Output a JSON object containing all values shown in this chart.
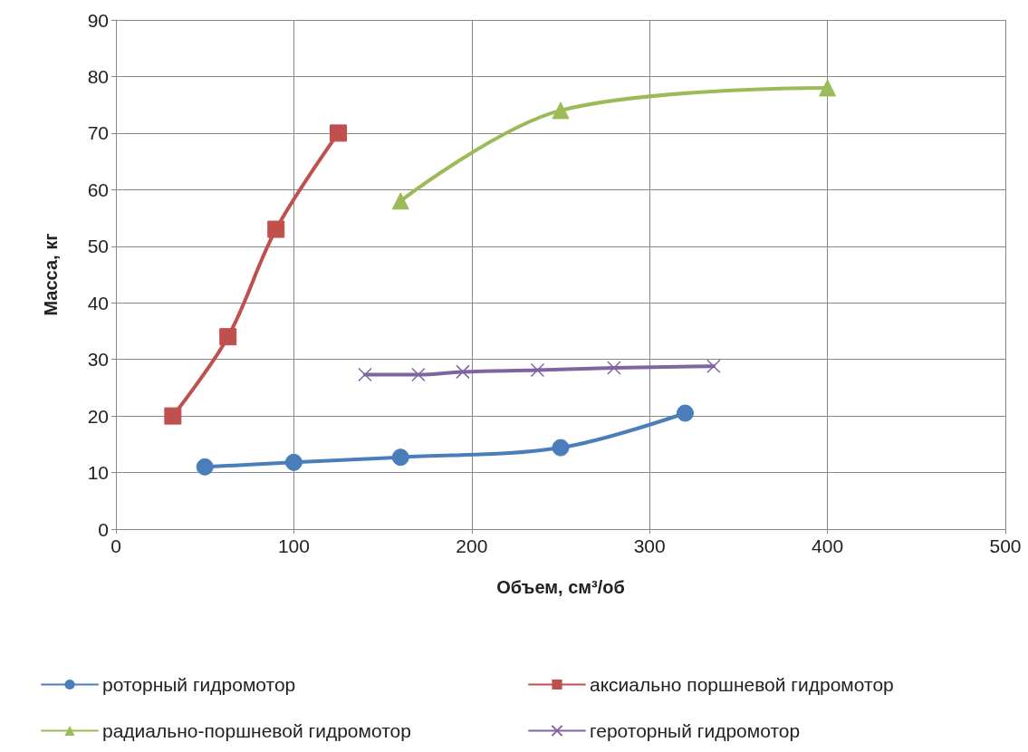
{
  "chart_data": {
    "type": "line",
    "xlabel": "Объем, см³/об",
    "ylabel": "Масса, кг",
    "xlim": [
      0,
      500
    ],
    "xticks": [
      0,
      100,
      200,
      300,
      400,
      500
    ],
    "ylim": [
      0,
      90
    ],
    "yticks": [
      0,
      10,
      20,
      30,
      40,
      50,
      60,
      70,
      80,
      90
    ],
    "grid": true,
    "legend": "bottom",
    "series": [
      {
        "name": "роторный гидромотор",
        "color": "#4a7ebb",
        "marker": "circle",
        "x": [
          50,
          100,
          160,
          250,
          320
        ],
        "values": [
          11,
          11.8,
          12.7,
          14.4,
          20.5
        ]
      },
      {
        "name": "аксиально поршневой гидромотор",
        "color": "#c0504d",
        "marker": "square",
        "x": [
          32,
          63,
          90,
          125
        ],
        "values": [
          20,
          34,
          53,
          70
        ]
      },
      {
        "name": "радиально-поршневой гидромотор",
        "color": "#9bbb59",
        "marker": "triangle",
        "x": [
          160,
          250,
          400
        ],
        "values": [
          58,
          74,
          78
        ]
      },
      {
        "name": "героторный гидромотор",
        "color": "#8064a2",
        "marker": "cross",
        "x": [
          140,
          170,
          195,
          237,
          280,
          336
        ],
        "values": [
          27.3,
          27.3,
          27.8,
          28.1,
          28.5,
          28.8
        ]
      }
    ]
  }
}
